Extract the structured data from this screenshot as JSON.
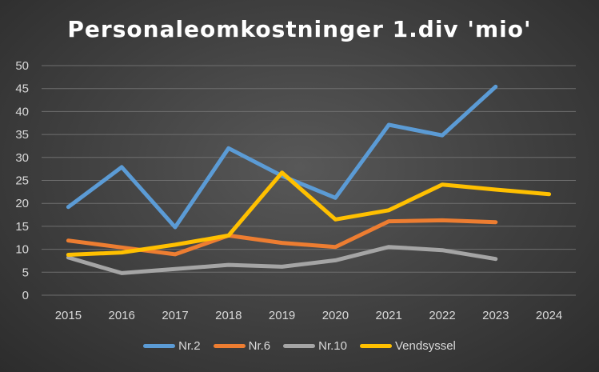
{
  "chart_data": {
    "type": "line",
    "title": "Personaleomkostninger 1.div 'mio'",
    "xlabel": "",
    "ylabel": "",
    "categories": [
      "2015",
      "2016",
      "2017",
      "2018",
      "2019",
      "2020",
      "2021",
      "2022",
      "2023",
      "2024"
    ],
    "ylim": [
      0,
      50
    ],
    "yticks": [
      0,
      5,
      10,
      15,
      20,
      25,
      30,
      35,
      40,
      45,
      50
    ],
    "grid": "horizontal",
    "legend_position": "bottom",
    "series": [
      {
        "name": "Nr.2",
        "color": "#5b9bd5",
        "values": [
          19.2,
          27.9,
          14.8,
          32.0,
          26.0,
          21.2,
          37.1,
          34.8,
          45.4,
          null
        ]
      },
      {
        "name": "Nr.6",
        "color": "#ed7d31",
        "values": [
          11.9,
          10.4,
          8.9,
          13.0,
          11.4,
          10.5,
          16.1,
          16.3,
          15.9,
          null
        ]
      },
      {
        "name": "Nr.10",
        "color": "#a5a5a5",
        "values": [
          8.2,
          4.8,
          5.7,
          6.6,
          6.2,
          7.6,
          10.5,
          9.8,
          7.9,
          null
        ]
      },
      {
        "name": "Vendsyssel",
        "color": "#ffc000",
        "values": [
          8.8,
          9.3,
          11.0,
          13.0,
          26.7,
          16.5,
          18.5,
          24.1,
          23.0,
          22.0
        ]
      }
    ]
  }
}
